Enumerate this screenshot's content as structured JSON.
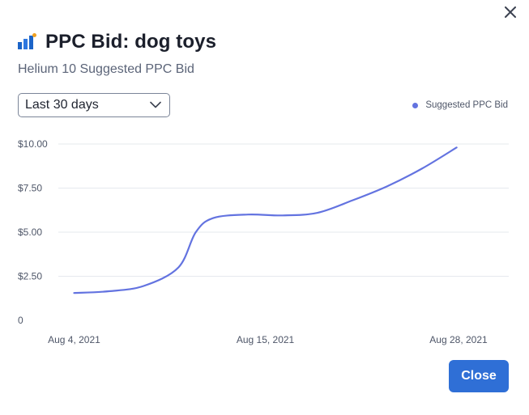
{
  "dialog": {
    "title": "PPC Bid: dog toys",
    "subtitle": "Helium 10 Suggested PPC Bid",
    "close_icon": "close-icon",
    "title_icon": "bar-chart-icon",
    "accent_color": "#6373e0",
    "button_color": "#2f6fd6"
  },
  "range_select": {
    "value": "Last 30 days",
    "icon": "chevron-down-icon"
  },
  "legend": {
    "label": "Suggested PPC Bid"
  },
  "footer": {
    "close_label": "Close"
  },
  "chart_data": {
    "type": "line",
    "title": "",
    "xlabel": "",
    "ylabel": "",
    "x_tick_labels": [
      "Aug 4, 2021",
      "Aug 15, 2021",
      "Aug 28, 2021"
    ],
    "y_tick_labels": [
      "0",
      "$2.50",
      "$5.00",
      "$7.50",
      "$10.00"
    ],
    "ylim": [
      0,
      10
    ],
    "xlim": [
      "2021-08-03",
      "2021-08-29"
    ],
    "grid": true,
    "legend_position": "top-right",
    "series": [
      {
        "name": "Suggested PPC Bid",
        "color": "#6373e0",
        "points": [
          {
            "x": "2021-08-04",
            "y": 1.55
          },
          {
            "x": "2021-08-06",
            "y": 1.65
          },
          {
            "x": "2021-08-08",
            "y": 1.95
          },
          {
            "x": "2021-08-10",
            "y": 3.0
          },
          {
            "x": "2021-08-11",
            "y": 5.0
          },
          {
            "x": "2021-08-12",
            "y": 5.8
          },
          {
            "x": "2021-08-14",
            "y": 6.0
          },
          {
            "x": "2021-08-16",
            "y": 5.95
          },
          {
            "x": "2021-08-18",
            "y": 6.1
          },
          {
            "x": "2021-08-20",
            "y": 6.8
          },
          {
            "x": "2021-08-22",
            "y": 7.6
          },
          {
            "x": "2021-08-24",
            "y": 8.6
          },
          {
            "x": "2021-08-26",
            "y": 9.8
          }
        ]
      }
    ]
  }
}
